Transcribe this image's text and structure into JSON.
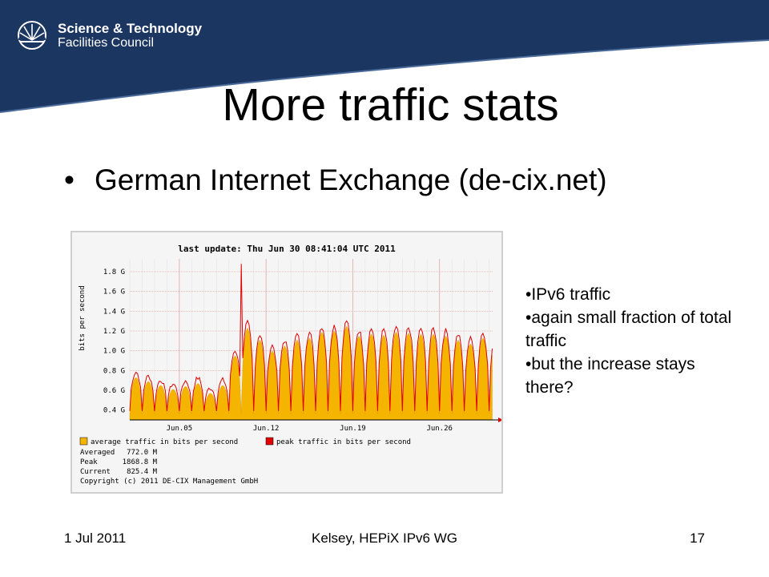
{
  "logo": {
    "line1": "Science & Technology",
    "line2": "Facilities Council",
    "icon": "sunburst-logo-icon"
  },
  "colors": {
    "banner": "#1c3662",
    "banner_edge": "#4a6a9a",
    "average_fill": "#f5b400",
    "peak_line": "#e00000",
    "grid_major": "#e2a8a8",
    "axis_arrow": "#e00000"
  },
  "slide": {
    "title": "More traffic stats",
    "bullet": "German Internet Exchange (de-cix.net)",
    "side_notes": [
      "•IPv6 traffic",
      "•again small fraction of total traffic",
      "•but the increase stays there?"
    ],
    "footer": {
      "date": "1 Jul 2011",
      "center": "Kelsey, HEPiX IPv6 WG",
      "page": "17"
    }
  },
  "chart_data": {
    "type": "area",
    "title": "last update: Thu Jun 30 08:41:04 UTC 2011",
    "ylabel": "bits per second",
    "xlabel": "",
    "y_tick_labels": [
      "0.4 G",
      "0.6 G",
      "0.8 G",
      "1.0 G",
      "1.2 G",
      "1.4 G",
      "1.6 G",
      "1.8 G"
    ],
    "y_tick_values": [
      0.4,
      0.6,
      0.8,
      1.0,
      1.2,
      1.4,
      1.6,
      1.8
    ],
    "ylim": [
      0.3,
      1.93
    ],
    "x_tick_labels": [
      "Jun.05",
      "Jun.12",
      "Jun.19",
      "Jun.26"
    ],
    "x_tick_days": [
      5,
      12,
      19,
      26
    ],
    "xlim_days": [
      1,
      30.35
    ],
    "grid": true,
    "daily_peak_G": [
      0.78,
      0.74,
      0.7,
      0.66,
      0.69,
      0.72,
      0.62,
      0.7,
      1.0,
      1.28,
      1.16,
      1.05,
      1.1,
      1.16,
      1.18,
      1.24,
      1.25,
      1.3,
      1.2,
      1.22,
      1.21,
      1.24,
      1.23,
      1.22,
      1.22,
      1.2,
      1.16,
      1.12,
      1.18,
      1.13
    ],
    "peak_spike": {
      "day": 10.0,
      "value_G": 1.88
    },
    "legend": [
      {
        "label": "average traffic in bits per second",
        "color": "#f5b400"
      },
      {
        "label": "peak traffic in bits per second",
        "color": "#e00000"
      }
    ],
    "stats": [
      {
        "label": "Averaged",
        "value": "772.0 M"
      },
      {
        "label": "Peak",
        "value": "1868.8 M"
      },
      {
        "label": "Current",
        "value": "825.4 M"
      }
    ],
    "copyright": "Copyright (c) 2011 DE-CIX Management GmbH"
  }
}
